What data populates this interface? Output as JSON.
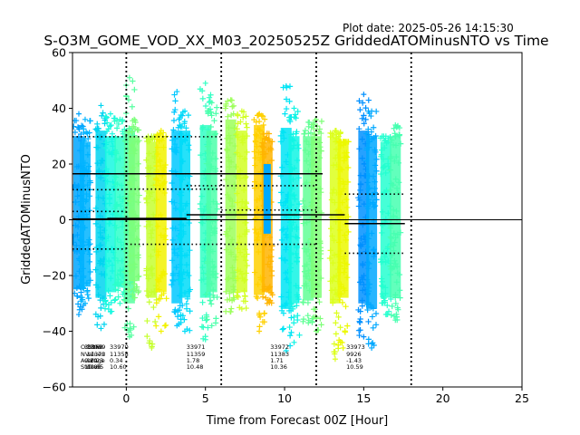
{
  "chart_data": {
    "type": "scatter",
    "plot_date": "Plot date: 2025-05-26 14:15:30",
    "title": "S-O3M_GOME_VOD_XX_M03_20250525Z GriddedATOMinusNTO vs Time",
    "xlabel": "Time from Forecast 00Z [Hour]",
    "ylabel": "GriddedATOMinusNTO",
    "xlim": [
      -3.4,
      25
    ],
    "ylim": [
      -60,
      60
    ],
    "x_ticks": [
      0,
      5,
      10,
      15,
      20,
      25
    ],
    "x_tick_labels": [
      "0",
      "5",
      "10",
      "15",
      "20",
      "25"
    ],
    "y_ticks": [
      -60,
      -40,
      -20,
      0,
      20,
      40,
      60
    ],
    "y_tick_labels": [
      "−60",
      "−40",
      "−20",
      "0",
      "20",
      "40",
      "60"
    ],
    "grid": false,
    "forecast_boundaries_hours": [
      0,
      6,
      12,
      18
    ],
    "zero_line": 0,
    "colormap": "jet (by time)",
    "scatter_columns": [
      {
        "x": -3.0,
        "min": -34,
        "max": 38,
        "core_min": -25,
        "core_max": 30,
        "color": "#00a4ff"
      },
      {
        "x": -2.6,
        "min": -30,
        "max": 36,
        "core_min": -24,
        "core_max": 28,
        "color": "#00b4ff"
      },
      {
        "x": -1.6,
        "min": -39,
        "max": 41,
        "core_min": -28,
        "core_max": 32,
        "color": "#00d4f0"
      },
      {
        "x": -1.0,
        "min": -33,
        "max": 38,
        "core_min": -26,
        "core_max": 30,
        "color": "#16f8e0"
      },
      {
        "x": -0.4,
        "min": -30,
        "max": 36,
        "core_min": -24,
        "core_max": 30,
        "color": "#2cffca"
      },
      {
        "x": 0.2,
        "min": -42,
        "max": 51,
        "core_min": -30,
        "core_max": 32,
        "color": "#56ffa0"
      },
      {
        "x": 0.5,
        "min": -28,
        "max": 36,
        "core_min": -22,
        "core_max": 30,
        "color": "#7cff7a"
      },
      {
        "x": 1.6,
        "min": -46,
        "max": 30,
        "core_min": -28,
        "core_max": 28,
        "color": "#c6ff30"
      },
      {
        "x": 2.2,
        "min": -40,
        "max": 32,
        "core_min": -26,
        "core_max": 29,
        "color": "#f2f200"
      },
      {
        "x": 3.2,
        "min": -38,
        "max": 46,
        "core_min": -30,
        "core_max": 32,
        "color": "#00c8ff"
      },
      {
        "x": 3.7,
        "min": -40,
        "max": 39,
        "core_min": -28,
        "core_max": 32,
        "color": "#00dcf8"
      },
      {
        "x": 5.0,
        "min": -43,
        "max": 49,
        "core_min": -28,
        "core_max": 34,
        "color": "#32ffc4"
      },
      {
        "x": 5.4,
        "min": -38,
        "max": 42,
        "core_min": -26,
        "core_max": 32,
        "color": "#4cffaa"
      },
      {
        "x": 6.6,
        "min": -33,
        "max": 43,
        "core_min": -26,
        "core_max": 36,
        "color": "#9cff5a"
      },
      {
        "x": 7.3,
        "min": -32,
        "max": 39,
        "core_min": -26,
        "core_max": 32,
        "color": "#d2ff24"
      },
      {
        "x": 8.4,
        "min": -40,
        "max": 38,
        "core_min": -27,
        "core_max": 34,
        "color": "#ffd000"
      },
      {
        "x": 8.9,
        "min": -30,
        "max": 31,
        "core_min": -26,
        "core_max": 28,
        "color": "#ffb400"
      },
      {
        "x": 10.1,
        "min": -47,
        "max": 48,
        "core_min": -32,
        "core_max": 33,
        "color": "#00e4f4"
      },
      {
        "x": 10.6,
        "min": -44,
        "max": 40,
        "core_min": -30,
        "core_max": 30,
        "color": "#10f4e4"
      },
      {
        "x": 11.5,
        "min": -37,
        "max": 35,
        "core_min": -29,
        "core_max": 30,
        "color": "#62ff96"
      },
      {
        "x": 12.0,
        "min": -40,
        "max": 36,
        "core_min": -28,
        "core_max": 30,
        "color": "#7eff78"
      },
      {
        "x": 13.2,
        "min": -50,
        "max": 32,
        "core_min": -30,
        "core_max": 30,
        "color": "#dcff1c"
      },
      {
        "x": 13.7,
        "min": -46,
        "max": 28,
        "core_min": -28,
        "core_max": 28,
        "color": "#ecf800"
      },
      {
        "x": 15.0,
        "min": -42,
        "max": 45,
        "core_min": -30,
        "core_max": 32,
        "color": "#0090ff"
      },
      {
        "x": 15.5,
        "min": -46,
        "max": 39,
        "core_min": -32,
        "core_max": 30,
        "color": "#00a8ff"
      },
      {
        "x": 16.4,
        "min": -34,
        "max": 30,
        "core_min": -28,
        "core_max": 28,
        "color": "#26ffd0"
      },
      {
        "x": 17.0,
        "min": -36,
        "max": 34,
        "core_min": -28,
        "core_max": 30,
        "color": "#46ffb0"
      }
    ],
    "highlight_bar": {
      "x": 8.9,
      "y_min": -5,
      "y_max": 20,
      "color": "#00aaff"
    },
    "mean_lines": [
      {
        "x_start": -3.4,
        "x_end": 12.4,
        "y": 16.5
      },
      {
        "x_start": -3.4,
        "x_end": 3.8,
        "y": 0.3
      },
      {
        "x_start": -1.2,
        "x_end": 3.8,
        "y": 0.5
      },
      {
        "x_start": 3.8,
        "x_end": 13.8,
        "y": 1.8
      },
      {
        "x_start": 13.8,
        "x_end": 17.6,
        "y": -1.4
      }
    ],
    "stdev_lines": [
      {
        "x_start": -3.4,
        "x_end": 6.0,
        "y": 29.8
      },
      {
        "x_start": -3.4,
        "x_end": 0.0,
        "y": 10.8
      },
      {
        "x_start": -3.4,
        "x_end": 0.0,
        "y": 3.0
      },
      {
        "x_start": -3.4,
        "x_end": 0.0,
        "y": -10.5
      },
      {
        "x_start": 0.0,
        "x_end": 6.0,
        "y": 11.0
      },
      {
        "x_start": 0.0,
        "x_end": 12.0,
        "y": -8.8
      },
      {
        "x_start": 3.8,
        "x_end": 12.0,
        "y": 12.2
      },
      {
        "x_start": 6.0,
        "x_end": 12.0,
        "y": 3.5
      },
      {
        "x_start": 13.8,
        "x_end": 17.6,
        "y": 9.2
      },
      {
        "x_start": 13.8,
        "x_end": 17.6,
        "y": -12.0
      }
    ],
    "stat_labels": [
      "OrbitNr",
      "NValues",
      "Average",
      "Stdev"
    ],
    "stat_blocks": [
      {
        "x": -2.5,
        "values": [
          "33969",
          "11373",
          "16.23",
          "13.85"
        ]
      },
      {
        "x": -2.65,
        "values": [
          "33968",
          "",
          "0.29",
          "10.88"
        ]
      },
      {
        "x": -1.05,
        "values": [
          "33970",
          "11358",
          "0.34",
          "10.60"
        ]
      },
      {
        "x": 3.8,
        "values": [
          "33971",
          "11359",
          "1.78",
          "10.48"
        ]
      },
      {
        "x": 9.1,
        "values": [
          "33972",
          "11383",
          "1.71",
          "10.36"
        ]
      },
      {
        "x": 13.9,
        "values": [
          "33973",
          "9926",
          "-1.43",
          "10.59"
        ]
      }
    ]
  }
}
